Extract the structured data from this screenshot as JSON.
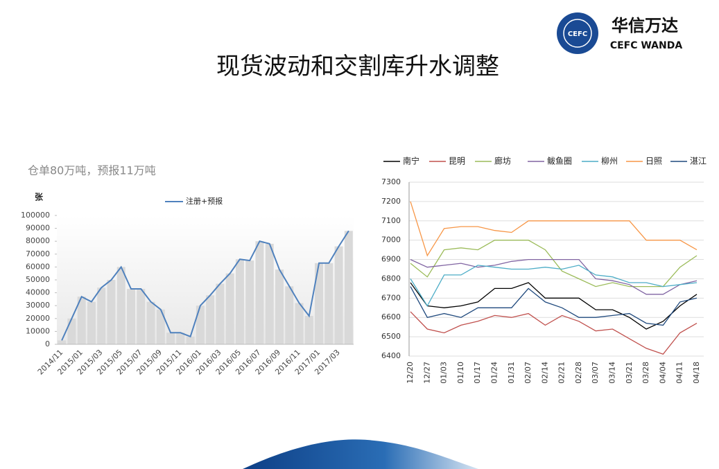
{
  "header": {
    "title": "现货波动和交割库升水调整",
    "logo_cn": "华信万达",
    "logo_en": "CEFC WANDA",
    "logo_badge": "CEFC"
  },
  "chart_data": [
    {
      "type": "combo",
      "subtitle": "仓单80万吨，预报11万吨",
      "ylabel": "张",
      "categories": [
        "2014/11",
        null,
        "2015/01",
        null,
        "2015/03",
        null,
        "2015/05",
        null,
        "2015/07",
        null,
        "2015/09",
        null,
        "2015/11",
        null,
        "2016/01",
        null,
        "2016/03",
        null,
        "2016/05",
        null,
        "2016/07",
        null,
        "2016/09",
        null,
        "2016/11",
        null,
        "2017/01",
        null,
        "2017/03",
        null
      ],
      "series": [
        {
          "name": "注册+预报",
          "color": "#4f81bd",
          "bar_color": "#d9d9d9",
          "values": [
            3000,
            20000,
            37000,
            33000,
            44000,
            50000,
            60000,
            43000,
            43000,
            33000,
            27000,
            9000,
            9000,
            6000,
            30000,
            38000,
            47000,
            55000,
            66000,
            65000,
            80000,
            78000,
            58000,
            45000,
            32000,
            22000,
            63000,
            63000,
            76000,
            88000
          ]
        }
      ],
      "ylim": [
        0,
        100000
      ],
      "yticks": [
        0,
        10000,
        20000,
        30000,
        40000,
        50000,
        60000,
        70000,
        80000,
        90000,
        100000
      ]
    },
    {
      "type": "line",
      "grid": true,
      "categories": [
        "12/20",
        "12/27",
        "01/03",
        "01/10",
        "01/17",
        "01/24",
        "01/31",
        "02/07",
        "02/14",
        "02/21",
        "02/28",
        "03/07",
        "03/14",
        "03/21",
        "03/28",
        "04/04",
        "04/11",
        "04/18"
      ],
      "series": [
        {
          "name": "南宁",
          "color": "#000000",
          "values": [
            6780,
            6660,
            6650,
            6660,
            6680,
            6750,
            6750,
            6780,
            6700,
            6700,
            6700,
            6640,
            6640,
            6600,
            6540,
            6580,
            6660,
            6720
          ]
        },
        {
          "name": "昆明",
          "color": "#c0504d",
          "values": [
            6630,
            6540,
            6520,
            6560,
            6580,
            6610,
            6600,
            6620,
            6560,
            6610,
            6580,
            6530,
            6540,
            6490,
            6440,
            6410,
            6520,
            6570
          ]
        },
        {
          "name": "廊坊",
          "color": "#9bbb59",
          "values": [
            6880,
            6810,
            6950,
            6960,
            6950,
            7000,
            7000,
            7000,
            6950,
            6840,
            6800,
            6760,
            6780,
            6760,
            6760,
            6760,
            6860,
            6920
          ]
        },
        {
          "name": "鲅鱼圈",
          "color": "#8064a2",
          "values": [
            6900,
            6860,
            6870,
            6880,
            6860,
            6870,
            6890,
            6900,
            6900,
            6900,
            6900,
            6800,
            6790,
            6770,
            6720,
            6720,
            6770,
            6790
          ]
        },
        {
          "name": "柳州",
          "color": "#4bacc6",
          "values": [
            6800,
            6660,
            6820,
            6820,
            6870,
            6860,
            6850,
            6850,
            6860,
            6850,
            6870,
            6820,
            6810,
            6780,
            6780,
            6760,
            6770,
            6780
          ]
        },
        {
          "name": "日照",
          "color": "#f79646",
          "values": [
            7200,
            6920,
            7060,
            7070,
            7070,
            7050,
            7040,
            7100,
            7100,
            7100,
            7100,
            7100,
            7100,
            7100,
            7000,
            7000,
            7000,
            6950
          ]
        },
        {
          "name": "湛江",
          "color": "#1f497d",
          "values": [
            6760,
            6600,
            6620,
            6600,
            6650,
            6650,
            6650,
            6750,
            6680,
            6650,
            6600,
            6600,
            6610,
            6620,
            6570,
            6560,
            6680,
            6700
          ]
        }
      ],
      "ylim": [
        6400,
        7300
      ],
      "yticks": [
        6400,
        6500,
        6600,
        6700,
        6800,
        6900,
        7000,
        7100,
        7200,
        7300
      ]
    }
  ]
}
